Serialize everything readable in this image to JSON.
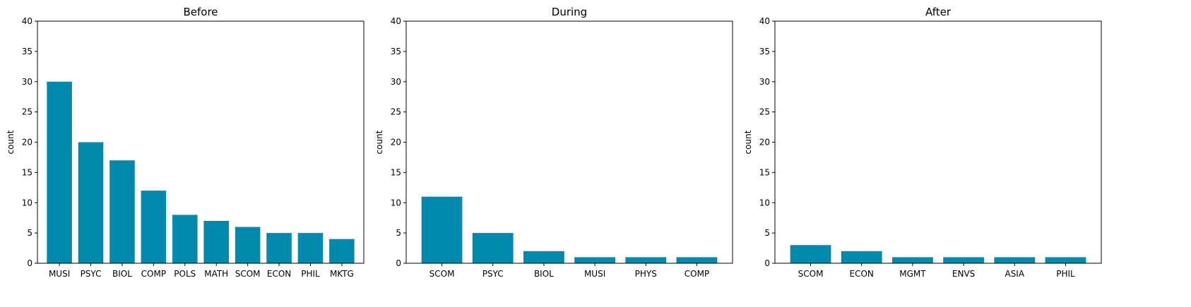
{
  "chart_data": [
    {
      "type": "bar",
      "title": "Before",
      "ylabel": "count",
      "ylim": [
        0,
        40
      ],
      "yticks": [
        0,
        5,
        10,
        15,
        20,
        25,
        30,
        35,
        40
      ],
      "categories": [
        "MUSI",
        "PSYC",
        "BIOL",
        "COMP",
        "POLS",
        "MATH",
        "SCOM",
        "ECON",
        "PHIL",
        "MKTG"
      ],
      "values": [
        30,
        20,
        17,
        12,
        8,
        7,
        6,
        5,
        5,
        4
      ],
      "color": "#0088ad",
      "grid": false
    },
    {
      "type": "bar",
      "title": "During",
      "ylabel": "count",
      "ylim": [
        0,
        40
      ],
      "yticks": [
        0,
        5,
        10,
        15,
        20,
        25,
        30,
        35,
        40
      ],
      "categories": [
        "SCOM",
        "PSYC",
        "BIOL",
        "MUSI",
        "PHYS",
        "COMP"
      ],
      "values": [
        11,
        5,
        2,
        1,
        1,
        1
      ],
      "color": "#0088ad",
      "grid": false
    },
    {
      "type": "bar",
      "title": "After",
      "ylabel": "count",
      "ylim": [
        0,
        40
      ],
      "yticks": [
        0,
        5,
        10,
        15,
        20,
        25,
        30,
        35,
        40
      ],
      "categories": [
        "SCOM",
        "ECON",
        "MGMT",
        "ENVS",
        "ASIA",
        "PHIL"
      ],
      "values": [
        3,
        2,
        1,
        1,
        1,
        1
      ],
      "color": "#0088ad",
      "grid": false
    }
  ]
}
